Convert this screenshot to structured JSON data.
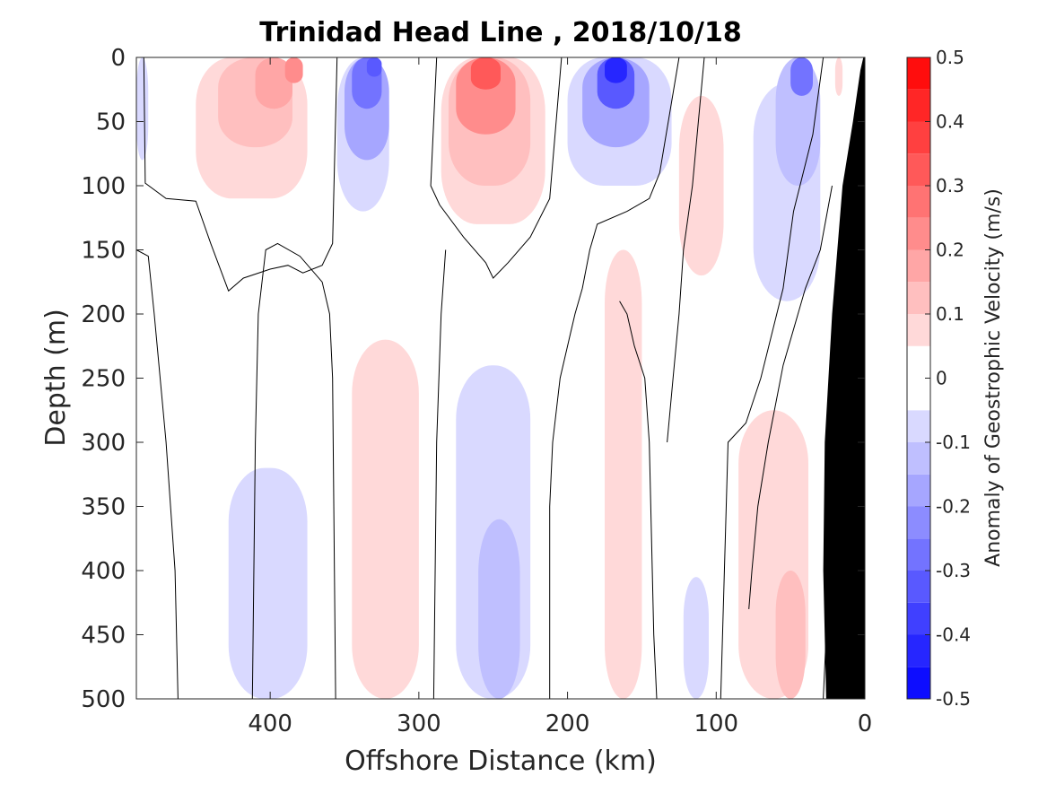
{
  "chart_data": {
    "type": "heatmap",
    "title": "Trinidad Head Line , 2018/10/18",
    "xlabel": "Offshore Distance (km)",
    "ylabel": "Depth (m)",
    "xlim": [
      490,
      0
    ],
    "ylim": [
      0,
      500
    ],
    "x_reversed": true,
    "y_reversed": true,
    "x_ticks": [
      400,
      300,
      200,
      100,
      0
    ],
    "y_ticks": [
      0,
      50,
      100,
      150,
      200,
      250,
      300,
      350,
      400,
      450,
      500
    ],
    "grid": false,
    "colorbar": {
      "label": "Anomaly of Geostrophic Velocity (m/s)",
      "range": [
        -0.5,
        0.5
      ],
      "levels": [
        -0.5,
        -0.45,
        -0.4,
        -0.35,
        -0.3,
        -0.25,
        -0.2,
        -0.15,
        -0.1,
        -0.05,
        0.05,
        0.1,
        0.15,
        0.2,
        0.25,
        0.3,
        0.35,
        0.4,
        0.45,
        0.5
      ],
      "ticks": [
        0.5,
        0.4,
        0.3,
        0.2,
        0.1,
        0,
        -0.1,
        -0.2,
        -0.3,
        -0.4,
        -0.5
      ],
      "low_color": "#0000ff",
      "mid_color": "#ffffff",
      "high_color": "#ff0000"
    },
    "anomaly_cells": [
      {
        "x0": 490,
        "x1": 482,
        "y0": 0,
        "y1": 80,
        "v": -0.07
      },
      {
        "x0": 450,
        "x1": 375,
        "y0": 0,
        "y1": 110,
        "v": 0.07
      },
      {
        "x0": 435,
        "x1": 385,
        "y0": 0,
        "y1": 70,
        "v": 0.12
      },
      {
        "x0": 410,
        "x1": 385,
        "y0": 0,
        "y1": 40,
        "v": 0.18
      },
      {
        "x0": 390,
        "x1": 378,
        "y0": 0,
        "y1": 20,
        "v": 0.22
      },
      {
        "x0": 355,
        "x1": 320,
        "y0": 0,
        "y1": 120,
        "v": -0.07
      },
      {
        "x0": 350,
        "x1": 320,
        "y0": 0,
        "y1": 80,
        "v": -0.15
      },
      {
        "x0": 345,
        "x1": 325,
        "y0": 0,
        "y1": 40,
        "v": -0.25
      },
      {
        "x0": 335,
        "x1": 325,
        "y0": 0,
        "y1": 15,
        "v": -0.32
      },
      {
        "x0": 285,
        "x1": 215,
        "y0": 0,
        "y1": 130,
        "v": 0.08
      },
      {
        "x0": 280,
        "x1": 225,
        "y0": 0,
        "y1": 100,
        "v": 0.15
      },
      {
        "x0": 275,
        "x1": 235,
        "y0": 0,
        "y1": 60,
        "v": 0.25
      },
      {
        "x0": 265,
        "x1": 245,
        "y0": 0,
        "y1": 25,
        "v": 0.35
      },
      {
        "x0": 200,
        "x1": 130,
        "y0": 0,
        "y1": 100,
        "v": -0.08
      },
      {
        "x0": 190,
        "x1": 145,
        "y0": 0,
        "y1": 70,
        "v": -0.18
      },
      {
        "x0": 180,
        "x1": 155,
        "y0": 0,
        "y1": 40,
        "v": -0.3
      },
      {
        "x0": 175,
        "x1": 160,
        "y0": 0,
        "y1": 20,
        "v": -0.42
      },
      {
        "x0": 125,
        "x1": 95,
        "y0": 30,
        "y1": 170,
        "v": 0.07
      },
      {
        "x0": 75,
        "x1": 30,
        "y0": 20,
        "y1": 190,
        "v": -0.07
      },
      {
        "x0": 60,
        "x1": 30,
        "y0": 0,
        "y1": 100,
        "v": -0.14
      },
      {
        "x0": 50,
        "x1": 35,
        "y0": 0,
        "y1": 30,
        "v": -0.25
      },
      {
        "x0": 20,
        "x1": 15,
        "y0": 0,
        "y1": 30,
        "v": 0.07
      },
      {
        "x0": 428,
        "x1": 375,
        "y0": 320,
        "y1": 500,
        "v": -0.07
      },
      {
        "x0": 345,
        "x1": 300,
        "y0": 220,
        "y1": 500,
        "v": 0.07
      },
      {
        "x0": 275,
        "x1": 225,
        "y0": 240,
        "y1": 500,
        "v": -0.08
      },
      {
        "x0": 260,
        "x1": 232,
        "y0": 360,
        "y1": 500,
        "v": -0.14
      },
      {
        "x0": 175,
        "x1": 150,
        "y0": 150,
        "y1": 500,
        "v": 0.07
      },
      {
        "x0": 122,
        "x1": 105,
        "y0": 405,
        "y1": 500,
        "v": -0.07
      },
      {
        "x0": 85,
        "x1": 38,
        "y0": 275,
        "y1": 500,
        "v": 0.07
      },
      {
        "x0": 60,
        "x1": 40,
        "y0": 400,
        "y1": 500,
        "v": 0.13
      }
    ],
    "zero_contours": [
      [
        [
          485,
          0
        ],
        [
          484,
          98
        ],
        [
          470,
          110
        ],
        [
          450,
          112
        ],
        [
          440,
          145
        ],
        [
          428,
          182
        ],
        [
          418,
          172
        ],
        [
          400,
          165
        ],
        [
          388,
          162
        ],
        [
          378,
          168
        ],
        [
          365,
          162
        ],
        [
          358,
          145
        ],
        [
          355,
          0
        ]
      ],
      [
        [
          490,
          150
        ],
        [
          482,
          155
        ],
        [
          478,
          200
        ],
        [
          470,
          300
        ],
        [
          464,
          400
        ],
        [
          462,
          500
        ]
      ],
      [
        [
          356,
          500
        ],
        [
          358,
          250
        ],
        [
          360,
          200
        ],
        [
          365,
          175
        ],
        [
          380,
          155
        ],
        [
          395,
          145
        ],
        [
          403,
          150
        ],
        [
          408,
          200
        ],
        [
          410,
          300
        ],
        [
          412,
          500
        ]
      ],
      [
        [
          288,
          0
        ],
        [
          292,
          100
        ],
        [
          286,
          115
        ],
        [
          270,
          140
        ],
        [
          255,
          160
        ],
        [
          250,
          172
        ],
        [
          240,
          160
        ],
        [
          225,
          140
        ],
        [
          212,
          110
        ],
        [
          204,
          0
        ]
      ],
      [
        [
          290,
          500
        ],
        [
          288,
          300
        ],
        [
          285,
          200
        ],
        [
          282,
          150
        ]
      ],
      [
        [
          212,
          500
        ],
        [
          212,
          350
        ],
        [
          210,
          300
        ],
        [
          205,
          250
        ],
        [
          198,
          215
        ],
        [
          195,
          200
        ],
        [
          190,
          180
        ],
        [
          185,
          150
        ],
        [
          180,
          130
        ],
        [
          160,
          120
        ],
        [
          145,
          110
        ],
        [
          138,
          90
        ],
        [
          125,
          0
        ]
      ],
      [
        [
          140,
          500
        ],
        [
          142,
          450
        ],
        [
          145,
          300
        ],
        [
          148,
          250
        ],
        [
          155,
          225
        ],
        [
          160,
          200
        ],
        [
          165,
          190
        ]
      ],
      [
        [
          97,
          500
        ],
        [
          95,
          420
        ],
        [
          92,
          300
        ],
        [
          80,
          285
        ],
        [
          70,
          250
        ],
        [
          55,
          180
        ],
        [
          48,
          120
        ],
        [
          35,
          60
        ],
        [
          28,
          0
        ]
      ],
      [
        [
          108,
          0
        ],
        [
          112,
          50
        ],
        [
          116,
          100
        ],
        [
          122,
          150
        ],
        [
          125,
          200
        ],
        [
          129,
          250
        ],
        [
          133,
          300
        ]
      ],
      [
        [
          78,
          430
        ],
        [
          76,
          400
        ],
        [
          72,
          350
        ],
        [
          65,
          300
        ],
        [
          55,
          240
        ],
        [
          40,
          180
        ],
        [
          30,
          150
        ],
        [
          22,
          100
        ]
      ],
      [
        [
          28,
          500
        ],
        [
          24,
          400
        ],
        [
          22,
          300
        ],
        [
          20,
          250
        ]
      ]
    ],
    "seafloor_polygon": [
      [
        0,
        0
      ],
      [
        0,
        500
      ],
      [
        26,
        500
      ],
      [
        28,
        400
      ],
      [
        27,
        300
      ],
      [
        22,
        200
      ],
      [
        15,
        100
      ],
      [
        8,
        50
      ],
      [
        3,
        10
      ],
      [
        1,
        0
      ]
    ]
  }
}
